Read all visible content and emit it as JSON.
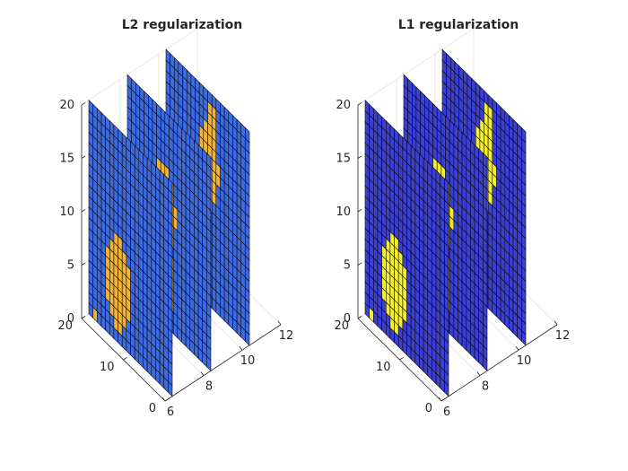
{
  "chart_data": [
    {
      "type": "surface3d",
      "title": "L2 regularization",
      "colormap": "parula",
      "colors": {
        "low": "#3d6ae0",
        "mid": "#2ba6cf",
        "high": "#f1b334",
        "max": "#f7d13a"
      },
      "slice_x_values": [
        7,
        9,
        11
      ],
      "grid_size": [
        20,
        20
      ],
      "x_ticks": [
        "6",
        "8",
        "10",
        "12"
      ],
      "y_ticks": [
        "0",
        "10",
        "20"
      ],
      "z_ticks": [
        "0",
        "5",
        "10",
        "15",
        "20"
      ],
      "xlim": [
        6,
        12
      ],
      "ylim": [
        0,
        20
      ],
      "zlim": [
        0,
        20
      ],
      "grid": true
    },
    {
      "type": "surface3d",
      "title": "L1 regularization",
      "colormap": "parula",
      "colors": {
        "low": "#3c3fd4",
        "mid": "#3c3fd4",
        "high": "#f4f030",
        "max": "#f4f030"
      },
      "slice_x_values": [
        7,
        9,
        11
      ],
      "grid_size": [
        20,
        20
      ],
      "x_ticks": [
        "6",
        "8",
        "10",
        "12"
      ],
      "y_ticks": [
        "0",
        "10",
        "20"
      ],
      "z_ticks": [
        "0",
        "5",
        "10",
        "15",
        "20"
      ],
      "xlim": [
        6,
        12
      ],
      "ylim": [
        0,
        20
      ],
      "zlim": [
        0,
        20
      ],
      "grid": true
    }
  ]
}
